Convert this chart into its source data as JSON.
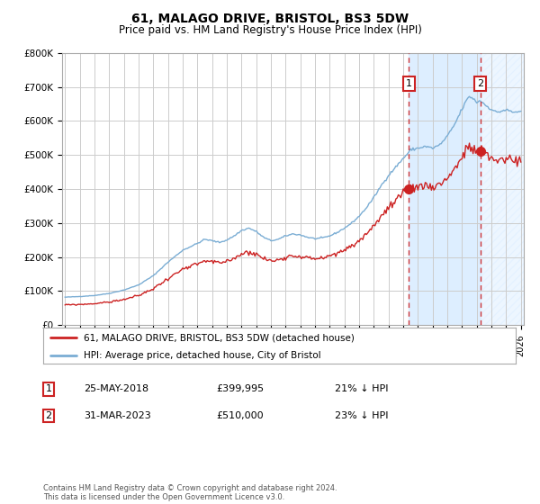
{
  "title": "61, MALAGO DRIVE, BRISTOL, BS3 5DW",
  "subtitle": "Price paid vs. HM Land Registry's House Price Index (HPI)",
  "ylim": [
    0,
    800000
  ],
  "yticks": [
    0,
    100000,
    200000,
    300000,
    400000,
    500000,
    600000,
    700000,
    800000
  ],
  "ytick_labels": [
    "£0",
    "£100K",
    "£200K",
    "£300K",
    "£400K",
    "£500K",
    "£600K",
    "£700K",
    "£800K"
  ],
  "x_start_year": 1995,
  "x_end_year": 2026,
  "hpi_color": "#7aadd4",
  "price_color": "#cc2222",
  "marker_color": "#cc2222",
  "bg_color": "#ffffff",
  "grid_color": "#cccccc",
  "shade_color": "#ddeeff",
  "event1_date_num": 2018.38,
  "event1_price": 399995,
  "event2_date_num": 2023.25,
  "event2_price": 510000,
  "legend_line1": "61, MALAGO DRIVE, BRISTOL, BS3 5DW (detached house)",
  "legend_line2": "HPI: Average price, detached house, City of Bristol",
  "annotation1_date": "25-MAY-2018",
  "annotation1_price": "£399,995",
  "annotation1_hpi": "21% ↓ HPI",
  "annotation2_date": "31-MAR-2023",
  "annotation2_price": "£510,000",
  "annotation2_hpi": "23% ↓ HPI",
  "footer": "Contains HM Land Registry data © Crown copyright and database right 2024.\nThis data is licensed under the Open Government Licence v3.0."
}
